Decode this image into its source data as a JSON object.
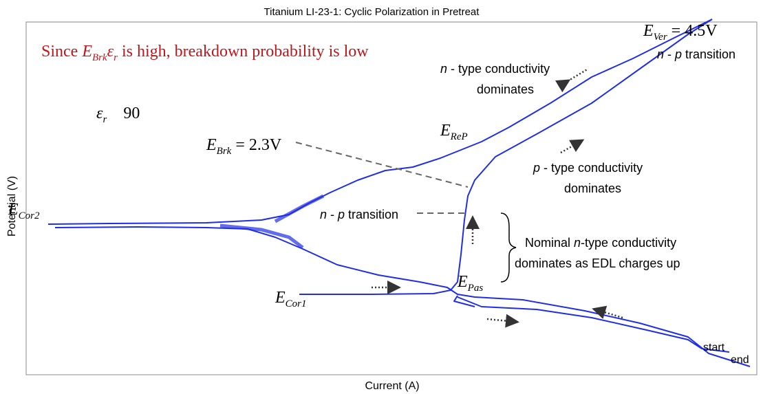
{
  "title": "Titanium LI-23-1: Cyclic Polarization in Pretreat",
  "x_axis_label": "Current (A)",
  "y_axis_label": "Potential (V)",
  "annotations": [
    [
      "Since ",
      "E",
      "Brk",
      "ε",
      "r",
      " is high, breakdown probability is low"
    ],
    [
      "E",
      "Ver",
      " = 4.5V"
    ],
    [
      "n",
      " - ",
      "p",
      " transition"
    ],
    [
      "n",
      " - type conductivity",
      "dominates"
    ],
    [
      "ε",
      "r",
      "90"
    ],
    [
      "E",
      "ReP"
    ],
    [
      "E",
      "Brk",
      " = 2.3V"
    ],
    [
      "p",
      " - type conductivity",
      "dominates"
    ],
    [
      "E",
      "Cor2"
    ],
    [
      "n",
      " - ",
      "p",
      " transition"
    ],
    [
      "Nominal ",
      "n",
      "-type conductivity",
      "dominates as EDL charges up"
    ],
    [
      "E",
      "Pas"
    ],
    [
      "E",
      "Cor1"
    ],
    "start",
    "end"
  ]
}
